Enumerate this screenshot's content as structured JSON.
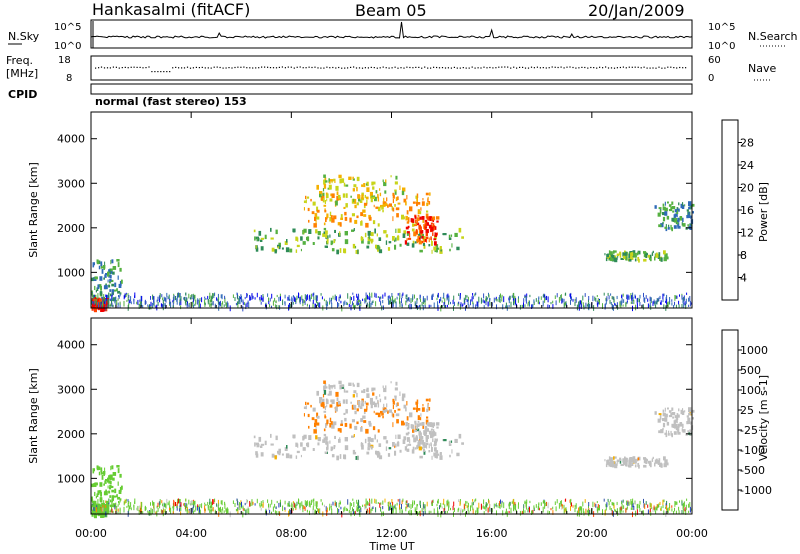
{
  "header": {
    "station": "Hankasalmi (fitACF)",
    "beam": "Beam 05",
    "date": "20/Jan/2009"
  },
  "strips": {
    "nsky_label": "N.Sky",
    "nsearch_label": "N.Search",
    "noise_ticks": [
      "10^5",
      "10^0"
    ],
    "freq_label_1": "Freq.",
    "freq_label_2": "[MHz]",
    "freq_ticks": [
      "18",
      "8"
    ],
    "nave_label": "Nave",
    "nave_ticks": [
      "60",
      "0"
    ],
    "cpid_label": "CPID",
    "cpid_text": "normal (fast stereo) 153"
  },
  "colorbars": {
    "power": {
      "label": "Power [dB]",
      "ticks": [
        "28",
        "24",
        "20",
        "16",
        "12",
        "8",
        "4"
      ],
      "colors": [
        "#0000ee",
        "#3050c8",
        "#2f6ab8",
        "#2e8b57",
        "#55b040",
        "#c8d41a",
        "#f4b000",
        "#ff8000",
        "#ff4000",
        "#ee0000"
      ]
    },
    "velocity": {
      "label": "Velocity [m s-1]",
      "ticks": [
        "1000",
        "500",
        "100",
        "25",
        "-25",
        "-100",
        "-500",
        "-1000"
      ],
      "colors": [
        "#2040c0",
        "#3050a8",
        "#2e8b57",
        "#66cc33",
        "#c0c0c0",
        "#f4b000",
        "#ff8000",
        "#ff4000",
        "#ee0000"
      ]
    }
  },
  "chart_data": {
    "type": "heatmap",
    "panels": [
      "power",
      "velocity"
    ],
    "ylabel": "Slant Range [km]",
    "xlabel": "Time UT",
    "ylim": [
      200,
      4600
    ],
    "y_ticks": [
      1000,
      2000,
      3000,
      4000
    ],
    "xlim": [
      0,
      24
    ],
    "x_ticks": [
      "00:00",
      "04:00",
      "08:00",
      "12:00",
      "16:00",
      "20:00",
      "00:00"
    ],
    "scatter_regions": [
      {
        "t0": 6.5,
        "t1": 14.8,
        "r0": 1500,
        "r1": 2000,
        "power_db": 12,
        "velocity": 0
      },
      {
        "t0": 8.5,
        "t1": 13.5,
        "r0": 2100,
        "r1": 2800,
        "power_db": 20,
        "velocity": -200
      },
      {
        "t0": 9.0,
        "t1": 12.5,
        "r0": 2600,
        "r1": 3200,
        "power_db": 16,
        "velocity": 0
      },
      {
        "t0": 12.5,
        "t1": 13.8,
        "r0": 1700,
        "r1": 2300,
        "power_db": 24,
        "velocity": 0
      },
      {
        "t0": 20.5,
        "t1": 23.0,
        "r0": 1300,
        "r1": 1500,
        "power_db": 12,
        "velocity": 0
      },
      {
        "t0": 22.5,
        "t1": 24.0,
        "r0": 2000,
        "r1": 2600,
        "power_db": 8,
        "velocity": 0
      },
      {
        "t0": 0.0,
        "t1": 1.2,
        "r0": 400,
        "r1": 1300,
        "power_db": 8,
        "velocity": 25
      },
      {
        "t0": 0.0,
        "t1": 0.6,
        "r0": 200,
        "r1": 450,
        "power_db": 28,
        "velocity": 100
      }
    ]
  }
}
